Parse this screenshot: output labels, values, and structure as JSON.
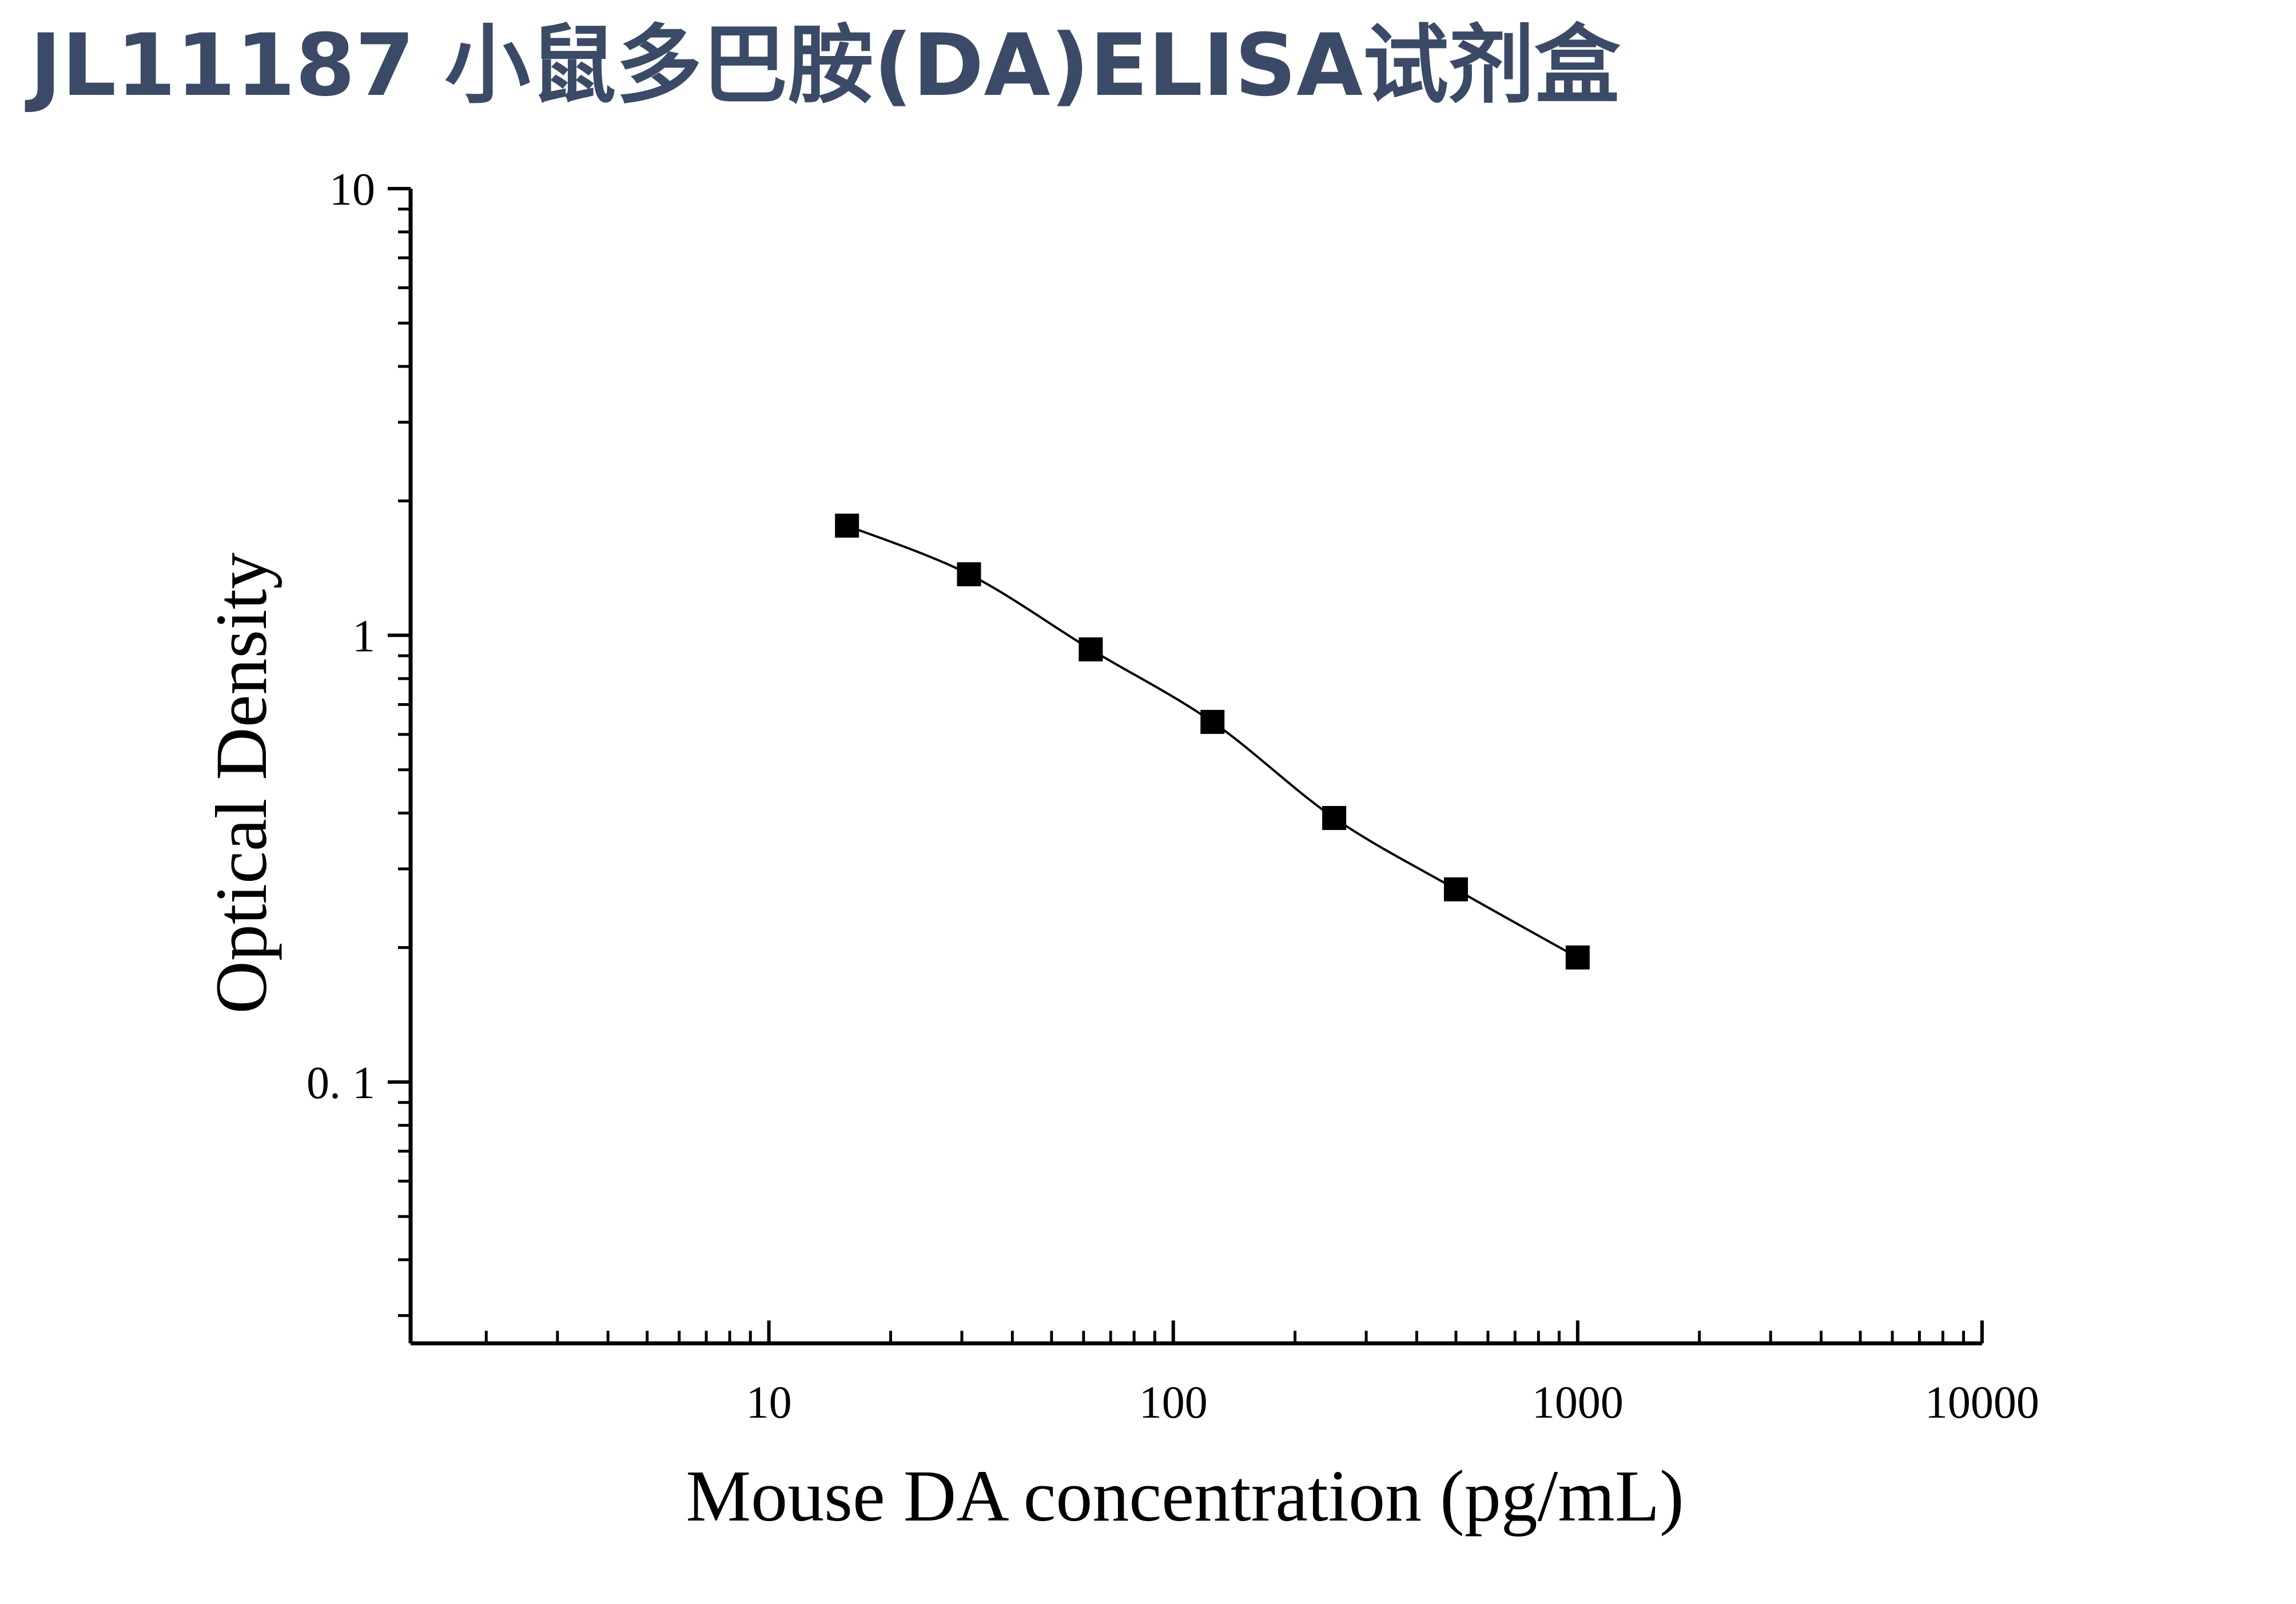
{
  "page": {
    "title": "JL11187 小鼠多巴胺(DA)ELISA试剂盒",
    "title_color": "#3b4a66"
  },
  "chart_data": {
    "type": "scatter",
    "title": "",
    "xlabel": "Mouse DA concentration (pg/mL)",
    "ylabel": "Optical Density",
    "x_scale": "log",
    "y_scale": "log",
    "xlim": [
      1.3,
      10000
    ],
    "ylim": [
      0.026,
      10
    ],
    "x_ticks": [
      10,
      100,
      1000,
      10000
    ],
    "x_tick_labels": [
      "10",
      "100",
      "1000",
      "10000"
    ],
    "y_ticks": [
      0.1,
      1,
      10
    ],
    "y_tick_labels": [
      "0. 1",
      "1",
      "10"
    ],
    "grid": false,
    "legend": "none",
    "marker": "square",
    "series_color": "#000000",
    "fit_curve": true,
    "series": [
      {
        "x": [
          15.6,
          31.25,
          62.5,
          125,
          250,
          500,
          1000
        ],
        "y": [
          1.76,
          1.37,
          0.93,
          0.64,
          0.39,
          0.27,
          0.19
        ]
      }
    ]
  }
}
